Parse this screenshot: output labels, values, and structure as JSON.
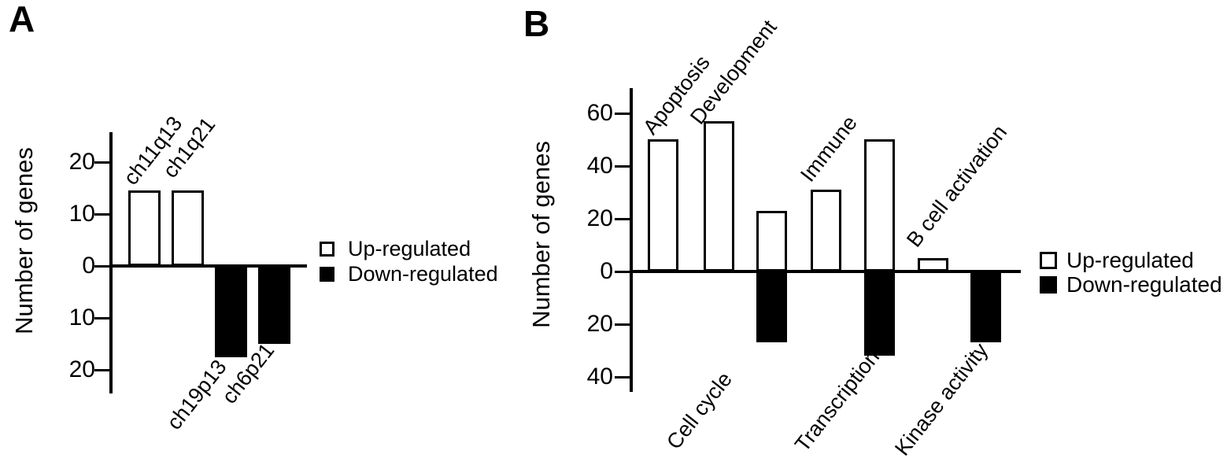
{
  "figure": {
    "panel_letters": [
      "A",
      "B"
    ]
  },
  "chart_data": [
    {
      "id": "A",
      "type": "bar",
      "subtype": "diverging-vertical",
      "title": "",
      "xlabel": "",
      "ylabel": "Number of genes",
      "categories": [
        "ch11q13",
        "ch1q21",
        "ch19p13",
        "ch6p21"
      ],
      "series": [
        {
          "name": "Up-regulated",
          "values": [
            14.5,
            14.5,
            null,
            null
          ]
        },
        {
          "name": "Down-regulated",
          "values": [
            null,
            null,
            17.5,
            15
          ]
        }
      ],
      "tick_values": [
        20,
        10,
        0,
        -10,
        -20
      ],
      "tick_labels": [
        "20",
        "10",
        "0",
        "10",
        "20"
      ],
      "ylim": [
        -25,
        26
      ],
      "grid": false,
      "legend": [
        "Up-regulated",
        "Down-regulated"
      ],
      "legend_position": "right-of-plot",
      "bar_colors": {
        "up": "#ffffff",
        "down": "#000000"
      },
      "accent_color": "#000000"
    },
    {
      "id": "B",
      "type": "bar",
      "subtype": "diverging-vertical",
      "title": "",
      "xlabel": "",
      "ylabel": "Number of genes",
      "categories": [
        "Apoptosis",
        "Development",
        "Cell cycle",
        "Immune",
        "Transcription",
        "B cell activation",
        "Kinase activity"
      ],
      "series": [
        {
          "name": "Up-regulated",
          "values": [
            50,
            57,
            23,
            31,
            50,
            5,
            null
          ]
        },
        {
          "name": "Down-regulated",
          "values": [
            null,
            null,
            27,
            null,
            32,
            null,
            27
          ]
        }
      ],
      "tick_values": [
        60,
        40,
        20,
        0,
        -20,
        -40
      ],
      "tick_labels": [
        "60",
        "40",
        "20",
        "0",
        "20",
        "40"
      ],
      "ylim": [
        -46,
        70
      ],
      "grid": false,
      "legend": [
        "Up-regulated",
        "Down-regulated"
      ],
      "legend_position": "right-of-plot",
      "bar_colors": {
        "up": "#ffffff",
        "down": "#000000"
      },
      "accent_color": "#000000"
    }
  ]
}
